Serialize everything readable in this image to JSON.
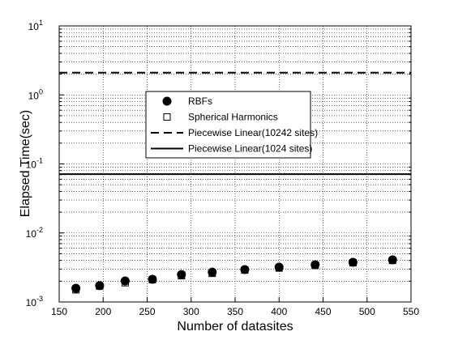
{
  "chart_data": {
    "type": "scatter",
    "xlabel": "Number of datasites",
    "ylabel": "Elapsed Time(sec)",
    "xlim": [
      150,
      550
    ],
    "xticks": [
      150,
      200,
      250,
      300,
      350,
      400,
      450,
      500,
      550
    ],
    "ylim": [
      0.001,
      10
    ],
    "log_y": true,
    "grid": true,
    "minor_grid": true,
    "yticks": [
      {
        "value": 0.001,
        "label": "10^-3"
      },
      {
        "value": 0.01,
        "label": "10^-2"
      },
      {
        "value": 0.1,
        "label": "10^-1"
      },
      {
        "value": 1,
        "label": "10^0"
      },
      {
        "value": 10,
        "label": "10^1"
      }
    ],
    "x": [
      169,
      196,
      225,
      256,
      289,
      324,
      361,
      400,
      441,
      484,
      529
    ],
    "series": [
      {
        "name": "RBFs",
        "marker": "circle",
        "color": "#000000",
        "values": [
          0.00158,
          0.00172,
          0.00202,
          0.00213,
          0.0025,
          0.00271,
          0.00295,
          0.00319,
          0.00346,
          0.00376,
          0.00407
        ]
      },
      {
        "name": "Spherical Harmonics",
        "marker": "square",
        "color": "#000000",
        "values": [
          0.0015,
          0.0017,
          0.0019,
          0.0021,
          0.0024,
          0.0026,
          0.0029,
          0.0031,
          0.0034,
          0.0037,
          0.004
        ]
      },
      {
        "name": "Piecewise Linear(10242 sites)",
        "marker": "hline",
        "dash": "dashed",
        "color": "#000000",
        "values": [
          2.1
        ]
      },
      {
        "name": "Piecewise Linear(1024 sites)",
        "marker": "hline",
        "dash": "solid",
        "color": "#000000",
        "values": [
          0.071
        ]
      }
    ],
    "legend": "upper-center"
  }
}
